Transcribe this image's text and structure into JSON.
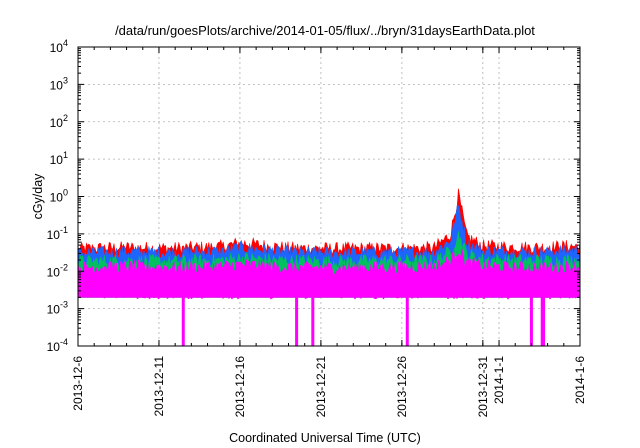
{
  "chart_data": {
    "type": "area",
    "title": "/data/run/goesPlots/archive/2014-01-05/flux/../bryn/31daysEarthData.plot",
    "xlabel": "Coordinated Universal Time (UTC)",
    "ylabel": "cGy/day",
    "y_scale": "log",
    "ylim": [
      0.0001,
      10000
    ],
    "xlim": [
      "2013-12-06",
      "2014-01-06"
    ],
    "grid": true,
    "legend": "none",
    "x_tick_labels": [
      "2013-12-6",
      "2013-12-11",
      "2013-12-16",
      "2013-12-21",
      "2013-12-26",
      "2013-12-31",
      "2014-1-1",
      "2014-1-6"
    ],
    "x_ticks": [
      "2013-12-06",
      "2013-12-11",
      "2013-12-16",
      "2013-12-21",
      "2013-12-26",
      "2013-12-31",
      "2014-01-01",
      "2014-01-06"
    ],
    "y_ticks": [
      {
        "value": 0.0001,
        "base": "10",
        "exp": "-4"
      },
      {
        "value": 0.001,
        "base": "10",
        "exp": "-3"
      },
      {
        "value": 0.01,
        "base": "10",
        "exp": "-2"
      },
      {
        "value": 0.1,
        "base": "10",
        "exp": "-1"
      },
      {
        "value": 1,
        "base": "10",
        "exp": "0"
      },
      {
        "value": 10,
        "base": "10",
        "exp": "1"
      },
      {
        "value": 100,
        "base": "10",
        "exp": "2"
      },
      {
        "value": 1000,
        "base": "10",
        "exp": "3"
      },
      {
        "value": 10000,
        "base": "10",
        "exp": "4"
      }
    ],
    "series": [
      {
        "color": "#ff0000",
        "x": [
          "2013-12-06",
          "2013-12-09",
          "2013-12-12",
          "2013-12-15",
          "2013-12-16",
          "2013-12-19",
          "2013-12-22",
          "2013-12-25",
          "2013-12-28",
          "2013-12-29",
          "2013-12-29T12:00",
          "2013-12-30",
          "2013-12-31",
          "2014-01-03",
          "2014-01-06"
        ],
        "y": [
          0.042,
          0.045,
          0.043,
          0.048,
          0.06,
          0.044,
          0.042,
          0.043,
          0.044,
          0.1,
          1.2,
          0.09,
          0.05,
          0.045,
          0.05
        ]
      },
      {
        "color": "#1e64ff",
        "x": [
          "2013-12-06",
          "2013-12-09",
          "2013-12-12",
          "2013-12-15",
          "2013-12-16",
          "2013-12-19",
          "2013-12-22",
          "2013-12-25",
          "2013-12-28",
          "2013-12-29",
          "2013-12-29T12:00",
          "2013-12-30",
          "2013-12-31",
          "2014-01-03",
          "2014-01-06"
        ],
        "y": [
          0.032,
          0.034,
          0.033,
          0.036,
          0.045,
          0.033,
          0.032,
          0.033,
          0.034,
          0.07,
          0.6,
          0.06,
          0.036,
          0.034,
          0.038
        ]
      },
      {
        "color": "#00c060",
        "x": [
          "2013-12-06",
          "2013-12-09",
          "2013-12-12",
          "2013-12-15",
          "2013-12-16",
          "2013-12-19",
          "2013-12-22",
          "2013-12-25",
          "2013-12-28",
          "2013-12-29",
          "2013-12-29T12:00",
          "2013-12-30",
          "2013-12-31",
          "2014-01-03",
          "2014-01-06"
        ],
        "y": [
          0.019,
          0.02,
          0.019,
          0.021,
          0.024,
          0.02,
          0.019,
          0.02,
          0.02,
          0.035,
          0.1,
          0.03,
          0.022,
          0.02,
          0.021
        ]
      },
      {
        "color": "#ff00ff",
        "x": [
          "2013-12-06",
          "2013-12-09",
          "2013-12-12",
          "2013-12-15",
          "2013-12-16",
          "2013-12-19",
          "2013-12-22",
          "2013-12-25",
          "2013-12-28",
          "2013-12-29",
          "2013-12-29T12:00",
          "2013-12-30",
          "2013-12-31",
          "2014-01-03",
          "2014-01-06"
        ],
        "y": [
          0.013,
          0.014,
          0.013,
          0.014,
          0.016,
          0.013,
          0.013,
          0.013,
          0.014,
          0.02,
          0.04,
          0.018,
          0.014,
          0.013,
          0.014
        ]
      }
    ],
    "baseline_floor": 0.002,
    "dropouts": [
      "2013-12-12T12:00",
      "2013-12-19T12:00",
      "2013-12-20T12:00",
      "2013-12-26T08:00",
      "2014-01-03T00:00",
      "2014-01-03T16:00",
      "2014-01-03T18:00"
    ]
  }
}
